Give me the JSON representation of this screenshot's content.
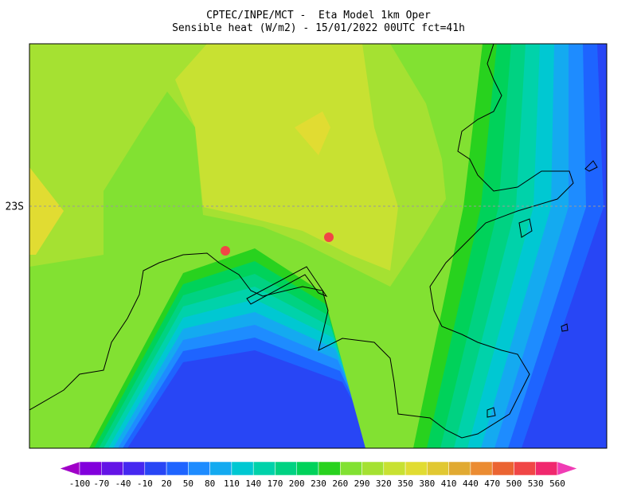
{
  "header": {
    "line1": "CPTEC/INPE/MCT -  Eta Model 1km Oper",
    "line2": "Sensible heat (W/m2) - 15/01/2022 00UTC fct=41h"
  },
  "map": {
    "lat_label": "23S"
  },
  "colorbar": {
    "levels": [
      -100,
      -70,
      -40,
      -10,
      20,
      50,
      80,
      110,
      140,
      170,
      200,
      230,
      260,
      290,
      320,
      350,
      380,
      410,
      440,
      470,
      500,
      530,
      560
    ],
    "colors": [
      "#a000c8",
      "#8200dc",
      "#6414e6",
      "#4628f0",
      "#2846f5",
      "#1e64ff",
      "#1e8cff",
      "#14aaf0",
      "#00c8d2",
      "#00d2aa",
      "#00d282",
      "#00d25a",
      "#28d21e",
      "#82e132",
      "#a5e132",
      "#c8e132",
      "#e1dc32",
      "#e1c832",
      "#e1aa32",
      "#eb8c32",
      "#eb6432",
      "#f04646",
      "#f0286e",
      "#f03cb4"
    ]
  }
}
